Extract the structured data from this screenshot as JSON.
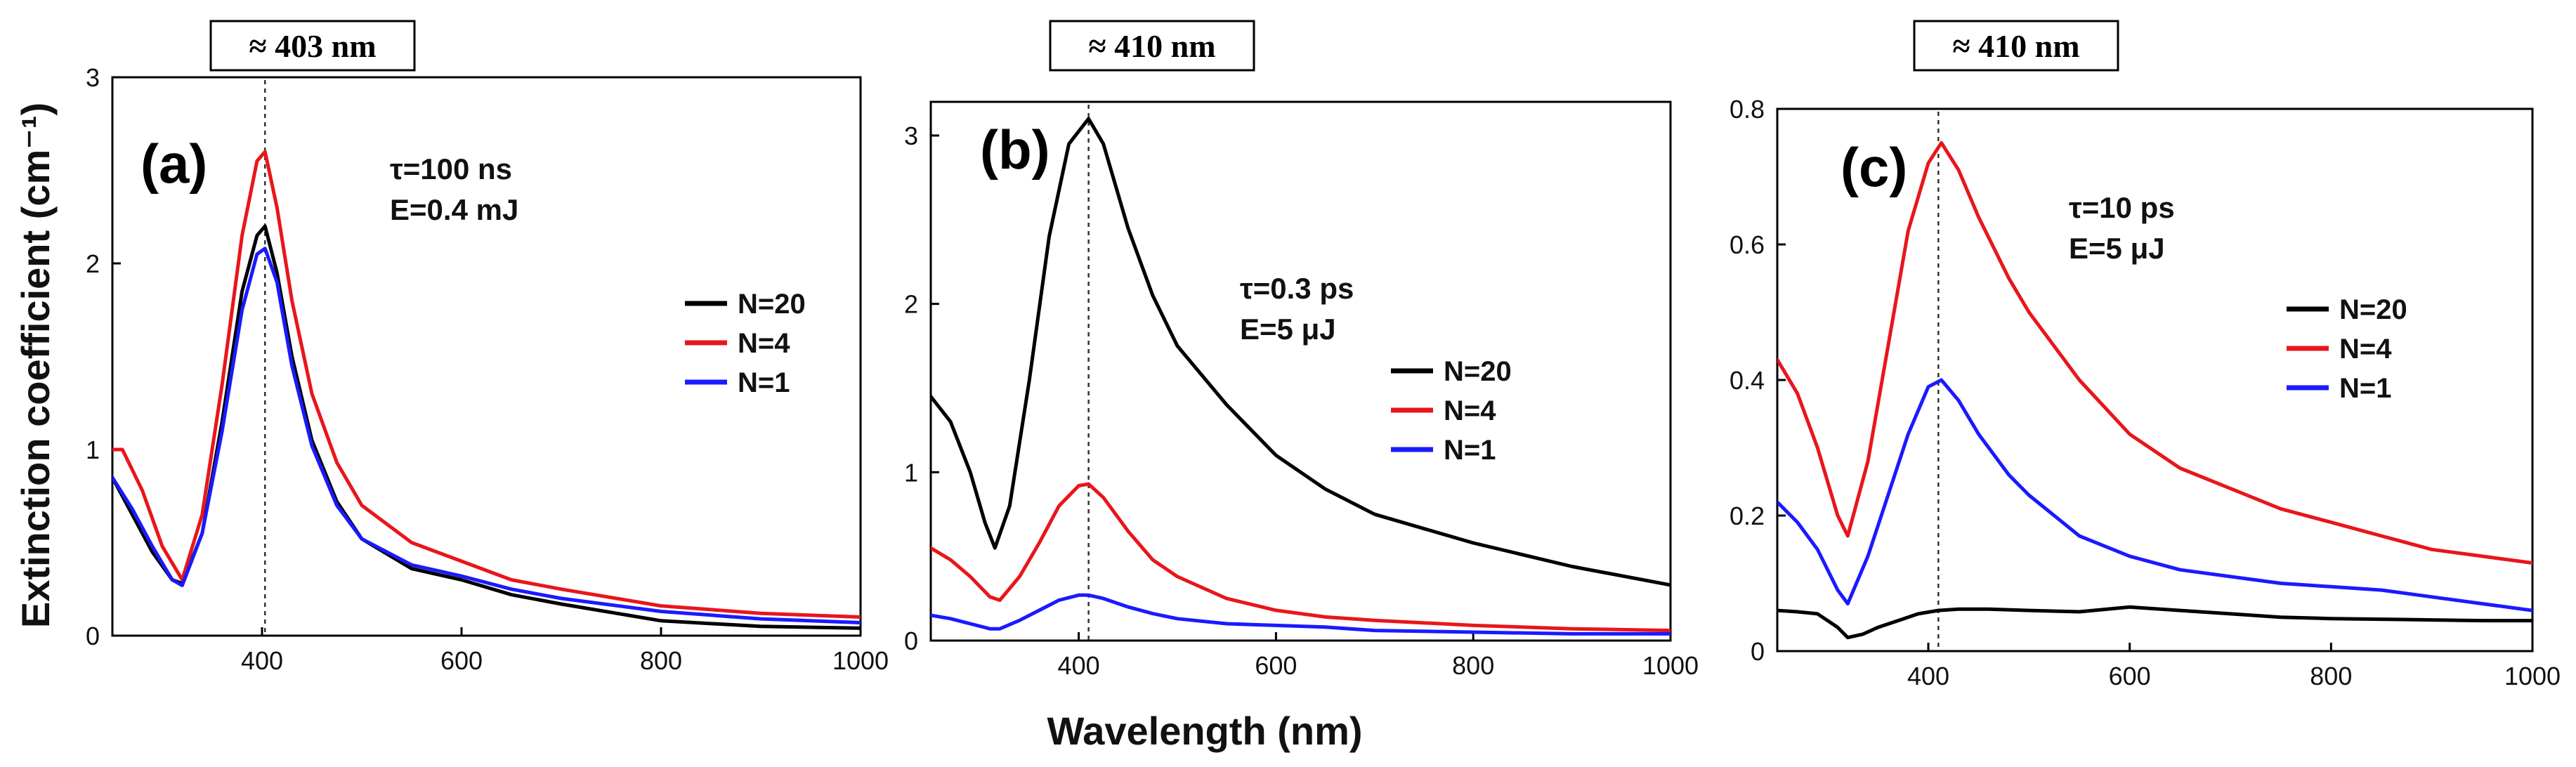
{
  "figure": {
    "ylabel_shared": "Extinction coefficient (cm⁻¹)",
    "xlabel_shared": "Wavelength (nm)"
  },
  "colors": {
    "N=20": "#000000",
    "N=4": "#e8161b",
    "N=1": "#1a1aff"
  },
  "chart_data": [
    {
      "type": "line",
      "panel": "(a)",
      "peak_label": "≈ 403 nm",
      "peak_x": 403,
      "annotation": [
        "τ=100 ns",
        "E=0.4 mJ"
      ],
      "xlim": [
        250,
        1000
      ],
      "ylim": [
        0,
        3
      ],
      "xticks": [
        400,
        600,
        800,
        1000
      ],
      "yticks": [
        0,
        1,
        2,
        3
      ],
      "legend": [
        "N=20",
        "N=4",
        "N=1"
      ],
      "series": [
        {
          "name": "N=20",
          "x": [
            250,
            270,
            290,
            310,
            320,
            340,
            360,
            380,
            395,
            403,
            415,
            430,
            450,
            475,
            500,
            550,
            600,
            650,
            700,
            800,
            900,
            1000
          ],
          "y": [
            0.85,
            0.65,
            0.45,
            0.3,
            0.28,
            0.55,
            1.15,
            1.85,
            2.15,
            2.2,
            1.95,
            1.5,
            1.05,
            0.72,
            0.52,
            0.36,
            0.3,
            0.22,
            0.17,
            0.08,
            0.05,
            0.04
          ]
        },
        {
          "name": "N=4",
          "x": [
            250,
            260,
            280,
            300,
            320,
            340,
            360,
            380,
            395,
            403,
            415,
            430,
            450,
            475,
            500,
            550,
            600,
            650,
            700,
            800,
            900,
            1000
          ],
          "y": [
            1.0,
            1.0,
            0.78,
            0.48,
            0.3,
            0.65,
            1.35,
            2.15,
            2.55,
            2.6,
            2.3,
            1.8,
            1.3,
            0.93,
            0.7,
            0.5,
            0.4,
            0.3,
            0.25,
            0.16,
            0.12,
            0.1
          ]
        },
        {
          "name": "N=1",
          "x": [
            250,
            270,
            290,
            310,
            320,
            340,
            360,
            380,
            395,
            403,
            415,
            430,
            450,
            475,
            500,
            550,
            600,
            650,
            700,
            800,
            900,
            1000
          ],
          "y": [
            0.85,
            0.68,
            0.48,
            0.3,
            0.27,
            0.55,
            1.1,
            1.75,
            2.05,
            2.08,
            1.9,
            1.45,
            1.02,
            0.7,
            0.52,
            0.38,
            0.32,
            0.25,
            0.2,
            0.13,
            0.09,
            0.07
          ]
        }
      ]
    },
    {
      "type": "line",
      "panel": "(b)",
      "peak_label": "≈ 410 nm",
      "peak_x": 410,
      "annotation": [
        "τ=0.3 ps",
        "E=5 μJ"
      ],
      "xlim": [
        250,
        1000
      ],
      "ylim": [
        0,
        3.2
      ],
      "xticks": [
        400,
        600,
        800,
        1000
      ],
      "yticks": [
        0,
        1,
        2,
        3
      ],
      "legend": [
        "N=20",
        "N=4",
        "N=1"
      ],
      "series": [
        {
          "name": "N=20",
          "x": [
            250,
            270,
            290,
            305,
            315,
            330,
            350,
            370,
            390,
            410,
            425,
            450,
            475,
            500,
            550,
            600,
            650,
            700,
            800,
            900,
            1000
          ],
          "y": [
            1.45,
            1.3,
            1.0,
            0.7,
            0.55,
            0.8,
            1.55,
            2.4,
            2.95,
            3.1,
            2.95,
            2.45,
            2.05,
            1.75,
            1.4,
            1.1,
            0.9,
            0.75,
            0.58,
            0.44,
            0.33
          ]
        },
        {
          "name": "N=4",
          "x": [
            250,
            270,
            290,
            310,
            320,
            340,
            360,
            380,
            400,
            410,
            425,
            450,
            475,
            500,
            550,
            600,
            650,
            700,
            800,
            900,
            1000
          ],
          "y": [
            0.55,
            0.48,
            0.38,
            0.26,
            0.24,
            0.38,
            0.58,
            0.8,
            0.92,
            0.93,
            0.85,
            0.65,
            0.48,
            0.38,
            0.25,
            0.18,
            0.14,
            0.12,
            0.09,
            0.07,
            0.06
          ]
        },
        {
          "name": "N=1",
          "x": [
            250,
            270,
            290,
            310,
            320,
            340,
            360,
            380,
            400,
            410,
            425,
            450,
            475,
            500,
            550,
            600,
            650,
            700,
            800,
            900,
            1000
          ],
          "y": [
            0.15,
            0.13,
            0.1,
            0.07,
            0.07,
            0.12,
            0.18,
            0.24,
            0.27,
            0.27,
            0.25,
            0.2,
            0.16,
            0.13,
            0.1,
            0.09,
            0.08,
            0.06,
            0.05,
            0.04,
            0.04
          ]
        }
      ]
    },
    {
      "type": "line",
      "panel": "(c)",
      "peak_label": "≈ 410 nm",
      "peak_x": 410,
      "annotation": [
        "τ=10 ps",
        "E=5 μJ"
      ],
      "xlim": [
        250,
        1000
      ],
      "ylim": [
        0,
        0.8
      ],
      "xticks": [
        400,
        600,
        800,
        1000
      ],
      "yticks": [
        0,
        0.2,
        0.4,
        0.6,
        0.8
      ],
      "legend": [
        "N=20",
        "N=4",
        "N=1"
      ],
      "series": [
        {
          "name": "N=20",
          "x": [
            250,
            270,
            290,
            310,
            320,
            335,
            350,
            370,
            390,
            410,
            430,
            460,
            500,
            550,
            600,
            650,
            700,
            750,
            800,
            850,
            900,
            950,
            1000
          ],
          "y": [
            0.06,
            0.058,
            0.055,
            0.035,
            0.02,
            0.025,
            0.035,
            0.045,
            0.055,
            0.06,
            0.062,
            0.062,
            0.06,
            0.058,
            0.065,
            0.06,
            0.055,
            0.05,
            0.048,
            0.047,
            0.046,
            0.045,
            0.045
          ]
        },
        {
          "name": "N=4",
          "x": [
            250,
            270,
            290,
            310,
            320,
            340,
            360,
            380,
            400,
            413,
            430,
            450,
            480,
            500,
            550,
            600,
            650,
            700,
            750,
            800,
            850,
            900,
            950,
            1000
          ],
          "y": [
            0.43,
            0.38,
            0.3,
            0.2,
            0.17,
            0.28,
            0.45,
            0.62,
            0.72,
            0.75,
            0.71,
            0.64,
            0.55,
            0.5,
            0.4,
            0.32,
            0.27,
            0.24,
            0.21,
            0.19,
            0.17,
            0.15,
            0.14,
            0.13
          ]
        },
        {
          "name": "N=1",
          "x": [
            250,
            270,
            290,
            310,
            320,
            340,
            360,
            380,
            400,
            413,
            430,
            450,
            480,
            500,
            550,
            600,
            650,
            700,
            750,
            800,
            850,
            900,
            950,
            1000
          ],
          "y": [
            0.22,
            0.19,
            0.15,
            0.09,
            0.07,
            0.14,
            0.23,
            0.32,
            0.39,
            0.4,
            0.37,
            0.32,
            0.26,
            0.23,
            0.17,
            0.14,
            0.12,
            0.11,
            0.1,
            0.095,
            0.09,
            0.08,
            0.07,
            0.06
          ]
        }
      ]
    }
  ]
}
